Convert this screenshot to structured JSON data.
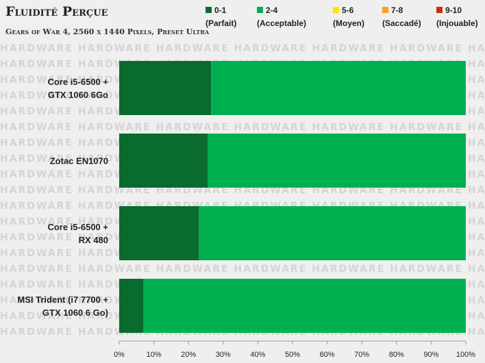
{
  "header": {
    "title": "Fluidité Perçue",
    "subtitle": "Gears of War 4, 2560 x 1440 Pixels, Preset Ultra"
  },
  "watermark_text": "HARDWARE",
  "legend": [
    {
      "range": "0-1",
      "label": "(Parfait)",
      "color": "#0a6b2e"
    },
    {
      "range": "2-4",
      "label": "(Acceptable)",
      "color": "#00b050"
    },
    {
      "range": "5-6",
      "label": "(Moyen)",
      "color": "#ffe600"
    },
    {
      "range": "7-8",
      "label": "(Saccadé)",
      "color": "#ffa020"
    },
    {
      "range": "9-10",
      "label": "(Injouable)",
      "color": "#c03010"
    }
  ],
  "chart_data": {
    "type": "bar",
    "orientation": "horizontal",
    "stacked": true,
    "categories": [
      [
        "Core i5-6500 +",
        "GTX 1060 6Go"
      ],
      [
        "Zotac EN1070"
      ],
      [
        "Core i5-6500 +",
        "RX 480"
      ],
      [
        "MSI Trident (i7 7700 +",
        "GTX 1060 6 Go)"
      ]
    ],
    "series": [
      {
        "name": "0-1 (Parfait)",
        "color": "#0a6b2e",
        "values": [
          26.5,
          25.5,
          23,
          7
        ]
      },
      {
        "name": "2-4 (Acceptable)",
        "color": "#00b050",
        "values": [
          73.5,
          74.5,
          77,
          93
        ]
      },
      {
        "name": "5-6 (Moyen)",
        "color": "#ffe600",
        "values": [
          0,
          0,
          0,
          0
        ]
      },
      {
        "name": "7-8 (Saccadé)",
        "color": "#ffa020",
        "values": [
          0,
          0,
          0,
          0
        ]
      },
      {
        "name": "9-10 (Injouable)",
        "color": "#c03010",
        "values": [
          0,
          0,
          0,
          0
        ]
      }
    ],
    "xlim": [
      0,
      100
    ],
    "xticks": [
      "0%",
      "10%",
      "20%",
      "30%",
      "40%",
      "50%",
      "60%",
      "70%",
      "80%",
      "90%",
      "100%"
    ],
    "legend_position": "top"
  }
}
